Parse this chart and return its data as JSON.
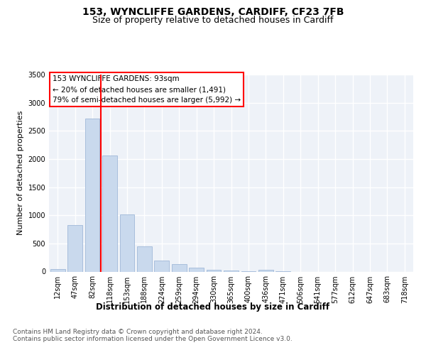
{
  "title": "153, WYNCLIFFE GARDENS, CARDIFF, CF23 7FB",
  "subtitle": "Size of property relative to detached houses in Cardiff",
  "xlabel": "Distribution of detached houses by size in Cardiff",
  "ylabel": "Number of detached properties",
  "bar_color": "#c9d9ed",
  "bar_edge_color": "#a0b8d8",
  "bg_color": "#eef2f8",
  "grid_color": "white",
  "categories": [
    "12sqm",
    "47sqm",
    "82sqm",
    "118sqm",
    "153sqm",
    "188sqm",
    "224sqm",
    "259sqm",
    "294sqm",
    "330sqm",
    "365sqm",
    "400sqm",
    "436sqm",
    "471sqm",
    "506sqm",
    "541sqm",
    "577sqm",
    "612sqm",
    "647sqm",
    "683sqm",
    "718sqm"
  ],
  "values": [
    50,
    830,
    2720,
    2060,
    1010,
    450,
    200,
    130,
    70,
    35,
    20,
    10,
    30,
    5,
    0,
    0,
    0,
    0,
    0,
    0,
    0
  ],
  "red_line_x": 2.5,
  "annotation_text": "153 WYNCLIFFE GARDENS: 93sqm\n← 20% of detached houses are smaller (1,491)\n79% of semi-detached houses are larger (5,992) →",
  "ylim": [
    0,
    3500
  ],
  "yticks": [
    0,
    500,
    1000,
    1500,
    2000,
    2500,
    3000,
    3500
  ],
  "footer_text": "Contains HM Land Registry data © Crown copyright and database right 2024.\nContains public sector information licensed under the Open Government Licence v3.0.",
  "title_fontsize": 10,
  "subtitle_fontsize": 9,
  "axis_label_fontsize": 8.5,
  "tick_fontsize": 7,
  "annotation_fontsize": 7.5,
  "footer_fontsize": 6.5,
  "ylabel_fontsize": 8
}
